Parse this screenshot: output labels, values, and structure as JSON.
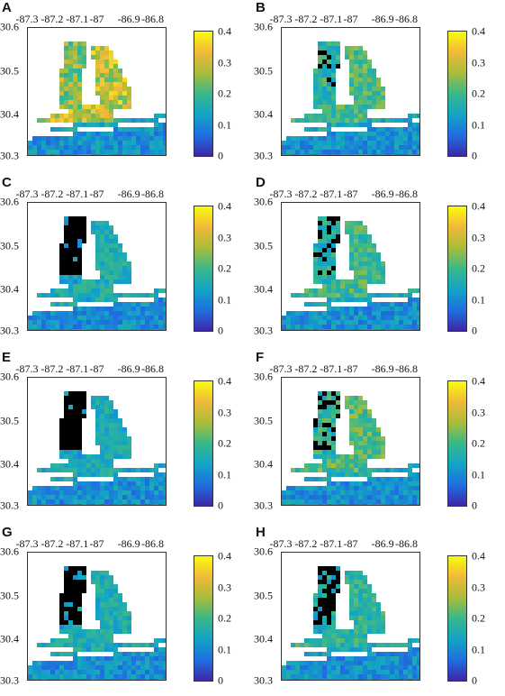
{
  "figure": {
    "longitude_ticks": [
      "-87.3",
      "-87.2",
      "-87.1",
      "-87",
      "-86.9",
      "-86.8"
    ],
    "latitude_ticks": [
      "30.6",
      "30.5",
      "30.4",
      "30.3"
    ],
    "colorbar_ticks": [
      "0.4",
      "0.3",
      "0.2",
      "0.1",
      "0"
    ],
    "colormap": [
      "#3e26a8",
      "#1f6fe0",
      "#12a4c6",
      "#39b88a",
      "#a8bd3a",
      "#f0b93a",
      "#f9fb0e"
    ],
    "land_color": "#ffffff",
    "nodata_color": "#000000"
  },
  "panels": [
    {
      "letter": "A",
      "bay_intensity": 0.78,
      "upper_bay_dark": 0.0
    },
    {
      "letter": "B",
      "bay_intensity": 0.55,
      "upper_bay_dark": 0.15
    },
    {
      "letter": "C",
      "bay_intensity": 0.42,
      "upper_bay_dark": 0.85
    },
    {
      "letter": "D",
      "bay_intensity": 0.52,
      "upper_bay_dark": 0.35
    },
    {
      "letter": "E",
      "bay_intensity": 0.4,
      "upper_bay_dark": 0.9
    },
    {
      "letter": "F",
      "bay_intensity": 0.56,
      "upper_bay_dark": 0.4
    },
    {
      "letter": "G",
      "bay_intensity": 0.42,
      "upper_bay_dark": 0.9
    },
    {
      "letter": "H",
      "bay_intensity": 0.48,
      "upper_bay_dark": 0.6
    }
  ]
}
